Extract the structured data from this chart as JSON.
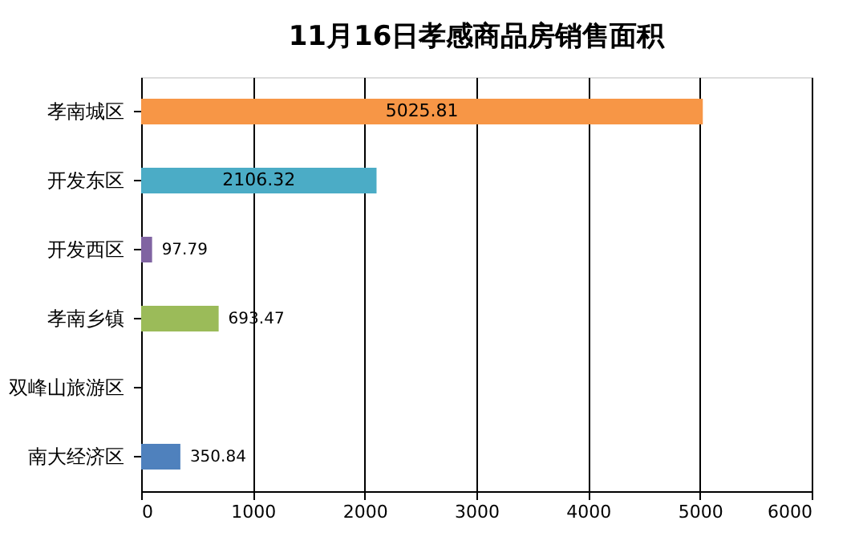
{
  "chart_data": {
    "type": "bar",
    "orientation": "horizontal",
    "title": "11月16日孝感商品房销售面积",
    "categories": [
      "孝南城区",
      "开发东区",
      "开发西区",
      "孝南乡镇",
      "双峰山旅游区",
      "南大经济区"
    ],
    "values": [
      5025.81,
      2106.32,
      97.79,
      693.47,
      null,
      350.84
    ],
    "colors": [
      "#f79646",
      "#4bacc6",
      "#8064a2",
      "#9bbb59",
      "#4f81bd",
      "#4f81bd"
    ],
    "value_labels": [
      "5025.81",
      "2106.32",
      "97.79",
      "693.47",
      null,
      "350.84"
    ],
    "xlim": [
      0,
      6000
    ],
    "xticks": [
      0,
      1000,
      2000,
      3000,
      4000,
      5000,
      6000
    ],
    "grid": "x"
  }
}
